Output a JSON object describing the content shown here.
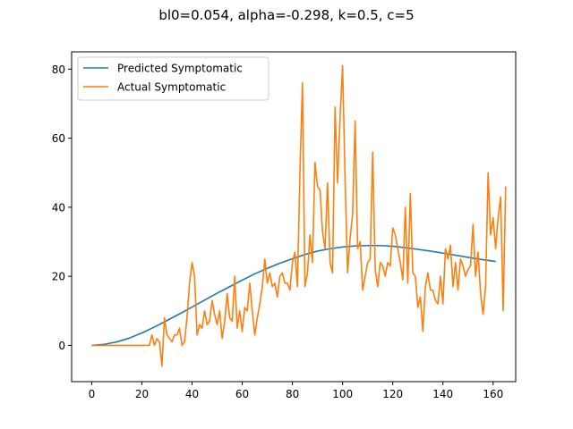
{
  "chart_data": {
    "type": "line",
    "title": "bl0=0.054, alpha=-0.298, k=0.5, c=5",
    "xlabel": "",
    "ylabel": "",
    "xlim": [
      -8,
      169
    ],
    "ylim": [
      -10.5,
      85
    ],
    "xticks": [
      "0",
      "20",
      "40",
      "60",
      "80",
      "100",
      "120",
      "140",
      "160"
    ],
    "yticks": [
      "0",
      "20",
      "40",
      "60",
      "80"
    ],
    "grid": false,
    "legend_position": "top-left",
    "series": [
      {
        "name": "Predicted Symptomatic",
        "color": "#1f77b4",
        "x": [
          0,
          5,
          10,
          15,
          20,
          25,
          30,
          35,
          40,
          45,
          50,
          55,
          60,
          65,
          70,
          75,
          80,
          85,
          90,
          95,
          100,
          105,
          110,
          115,
          120,
          125,
          130,
          135,
          140,
          145,
          150,
          155,
          161
        ],
        "y": [
          0,
          0.3,
          1.0,
          2.1,
          3.6,
          5.3,
          7.2,
          9.1,
          11.1,
          13.1,
          15.1,
          17.0,
          18.9,
          20.7,
          22.3,
          23.8,
          25.1,
          26.3,
          27.3,
          28.0,
          28.5,
          28.8,
          28.9,
          28.9,
          28.7,
          28.3,
          27.8,
          27.3,
          26.7,
          26.1,
          25.5,
          24.9,
          24.3
        ]
      },
      {
        "name": "Actual Symptomatic",
        "color": "#ff7f0e",
        "y": [
          0,
          0,
          0,
          0,
          0,
          0,
          0,
          0,
          0,
          0,
          0,
          0,
          0,
          0,
          0,
          0,
          0,
          0,
          0,
          0,
          0,
          0,
          0,
          0,
          3,
          0,
          2,
          1,
          -6,
          8,
          3,
          2,
          1,
          3,
          3,
          5,
          0,
          1,
          8,
          18,
          24,
          20,
          3,
          6,
          5,
          10,
          6,
          7,
          13,
          9,
          6,
          10,
          2,
          7,
          15,
          8,
          7,
          20,
          5,
          10,
          4,
          11,
          10,
          18,
          10,
          3,
          8,
          12,
          17,
          25,
          18,
          21,
          17,
          18,
          14,
          20,
          21,
          18,
          18,
          16,
          24,
          27,
          17,
          50,
          76,
          17,
          21,
          32,
          24,
          53,
          46,
          45,
          33,
          28,
          47,
          24,
          21,
          69,
          47,
          66,
          81,
          48,
          21,
          31,
          38,
          65,
          28,
          30,
          16,
          20,
          24,
          25,
          56,
          22,
          17,
          24,
          23,
          20,
          24,
          23,
          34,
          32,
          28,
          24,
          19,
          40,
          18,
          44,
          21,
          20,
          11,
          14,
          4,
          17,
          21,
          16,
          16,
          13,
          12,
          20,
          12,
          28,
          25,
          29,
          17,
          24,
          16,
          25,
          23,
          20,
          22,
          23,
          35,
          20,
          27,
          15,
          9,
          17,
          50,
          32,
          37,
          28,
          37,
          43,
          10,
          46
        ]
      }
    ]
  }
}
